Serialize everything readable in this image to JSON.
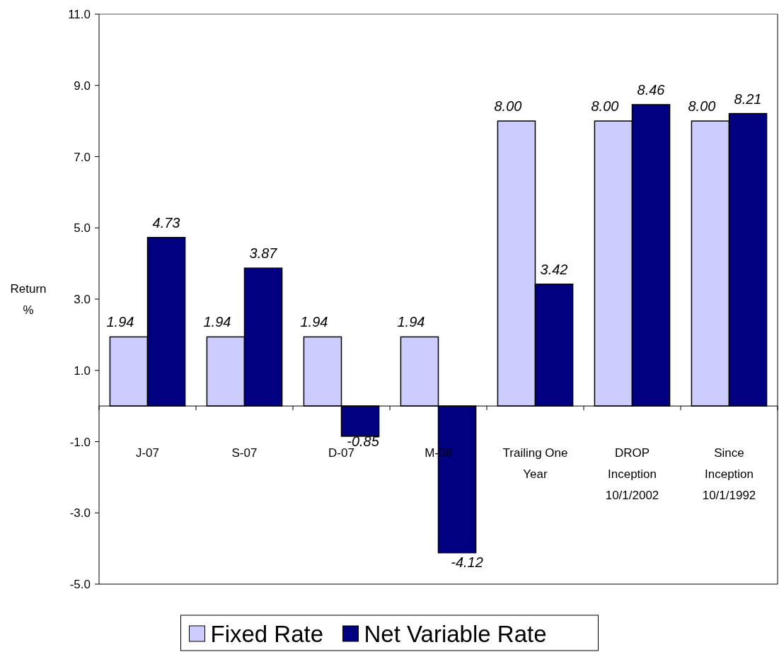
{
  "chart_data": {
    "type": "bar",
    "ylabel": "Return\n%",
    "categories": [
      "J-07",
      "S-07",
      "D-07",
      "M-08",
      "Trailing One\nYear",
      "DROP\nInception\n10/1/2002",
      "Since\nInception\n10/1/1992"
    ],
    "series": [
      {
        "name": "Fixed Rate",
        "color": "#ccccff",
        "values": [
          1.94,
          1.94,
          1.94,
          1.94,
          8.0,
          8.0,
          8.0
        ],
        "value_labels": [
          "1.94",
          "1.94",
          "1.94",
          "1.94",
          "8.00",
          "8.00",
          "8.00"
        ]
      },
      {
        "name": "Net Variable Rate",
        "color": "#000080",
        "values": [
          4.73,
          3.87,
          -0.85,
          -4.12,
          3.42,
          8.46,
          8.21
        ],
        "value_labels": [
          "4.73",
          "3.87",
          "-0.85",
          "-4.12",
          "3.42",
          "8.46",
          "8.21"
        ]
      }
    ],
    "ylim": [
      -5,
      11
    ],
    "yticks": [
      {
        "value": -5,
        "label": "-5.0"
      },
      {
        "value": -3,
        "label": "-3.0"
      },
      {
        "value": -1,
        "label": "-1.0"
      },
      {
        "value": 1,
        "label": "1.0"
      },
      {
        "value": 3,
        "label": "3.0"
      },
      {
        "value": 5,
        "label": "5.0"
      },
      {
        "value": 7,
        "label": "7.0"
      },
      {
        "value": 9,
        "label": "9.0"
      },
      {
        "value": 11,
        "label": "11.0"
      }
    ],
    "legend": "bottom",
    "grid": false
  }
}
